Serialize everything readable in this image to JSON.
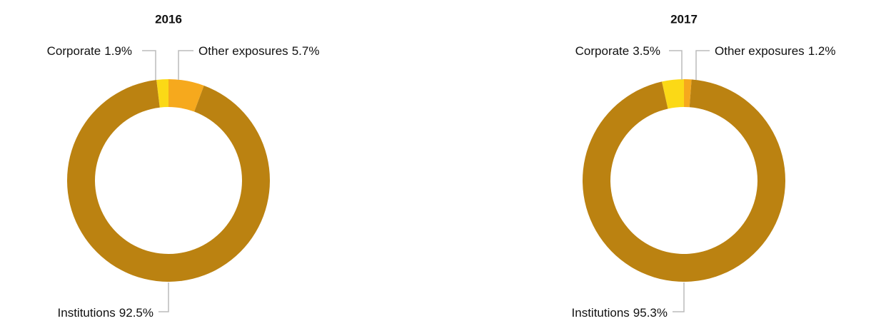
{
  "chart_data": [
    {
      "type": "donut",
      "title": "2016",
      "categories": [
        "Corporate",
        "Other exposures",
        "Institutions"
      ],
      "values": [
        1.9,
        5.7,
        92.5
      ],
      "value_labels": [
        "1.9%",
        "5.7%",
        "92.5%"
      ],
      "colors": [
        "#fbd916",
        "#f6a91d",
        "#bb8211"
      ]
    },
    {
      "type": "donut",
      "title": "2017",
      "categories": [
        "Corporate",
        "Other exposures",
        "Institutions"
      ],
      "values": [
        3.5,
        1.2,
        95.3
      ],
      "value_labels": [
        "3.5%",
        "1.2%",
        "95.3%"
      ],
      "colors": [
        "#fbd916",
        "#f6a91d",
        "#bb8211"
      ]
    }
  ]
}
